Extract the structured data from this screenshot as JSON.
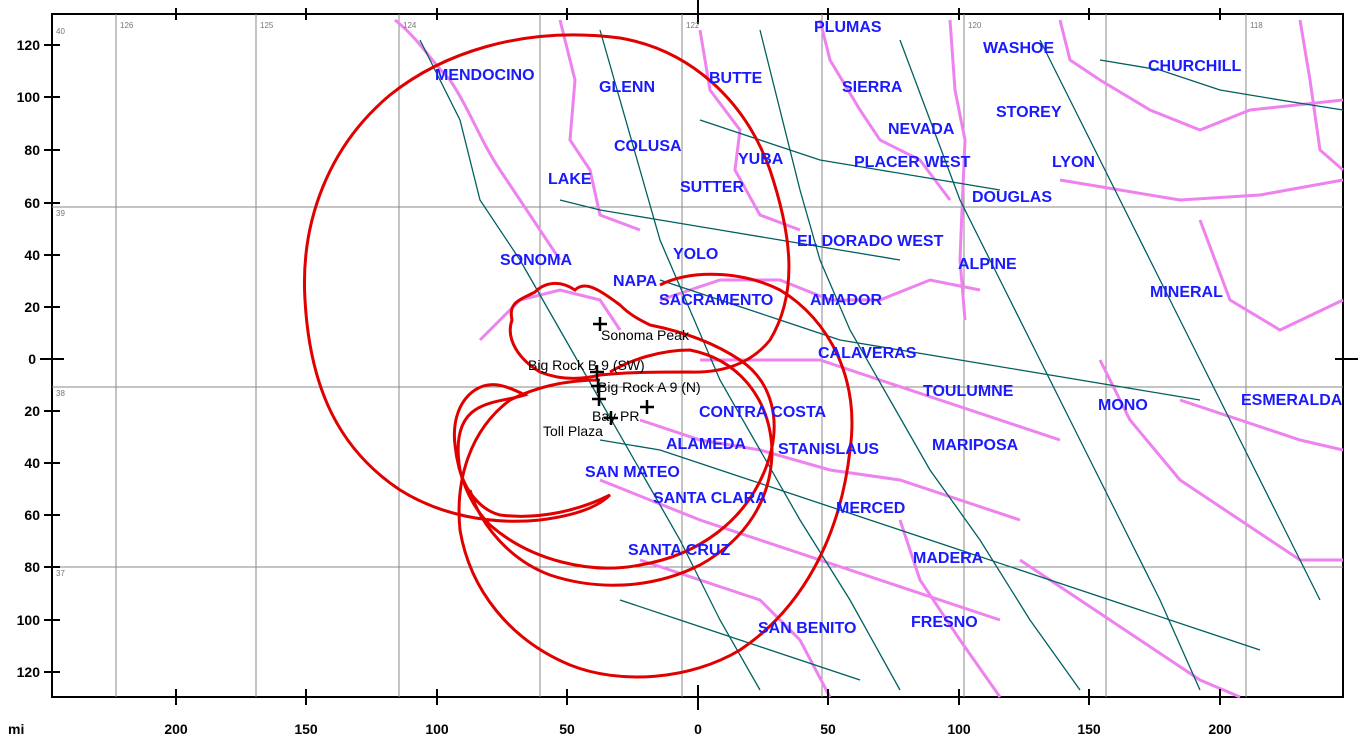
{
  "axes": {
    "y_unit_label": "mi",
    "y_ticks": [
      "120",
      "100",
      "80",
      "60",
      "40",
      "20",
      "0",
      "20",
      "40",
      "60",
      "80",
      "100",
      "120"
    ],
    "x_ticks": [
      "200",
      "150",
      "100",
      "50",
      "0",
      "50",
      "100",
      "150",
      "200"
    ],
    "grid_labels": [
      "40",
      "126",
      "125",
      "124",
      "122",
      "120",
      "118",
      "39",
      "38",
      "37"
    ]
  },
  "counties": [
    "PLUMAS",
    "WASHOE",
    "CHURCHILL",
    "MENDOCINO",
    "GLENN",
    "BUTTE",
    "SIERRA",
    "STOREY",
    "NEVADA",
    "COLUSA",
    "YUBA",
    "PLACER WEST",
    "LYON",
    "LAKE",
    "SUTTER",
    "DOUGLAS",
    "EL DORADO WEST",
    "SONOMA",
    "YOLO",
    "ALPINE",
    "NAPA",
    "SACRAMENTO",
    "AMADOR",
    "MINERAL",
    "CALAVERAS",
    "TOULUMNE",
    "MONO",
    "ESMERALDA",
    "CONTRA COSTA",
    "ALAMEDA",
    "STANISLAUS",
    "MARIPOSA",
    "SAN MATEO",
    "SANTA CLARA",
    "MERCED",
    "SANTA CRUZ",
    "MADERA",
    "SAN BENITO",
    "FRESNO"
  ],
  "sites": [
    "Sonoma Peak",
    "Big Rock B 9 (SW)",
    "Big Rock A 9 (N)",
    "Bay PR",
    "Toll Plaza"
  ],
  "colors": {
    "county_label": "#1a1aff",
    "county_border": "#ee82ee",
    "road": "#006060",
    "coverage": "#e00000",
    "grid": "#888888"
  }
}
